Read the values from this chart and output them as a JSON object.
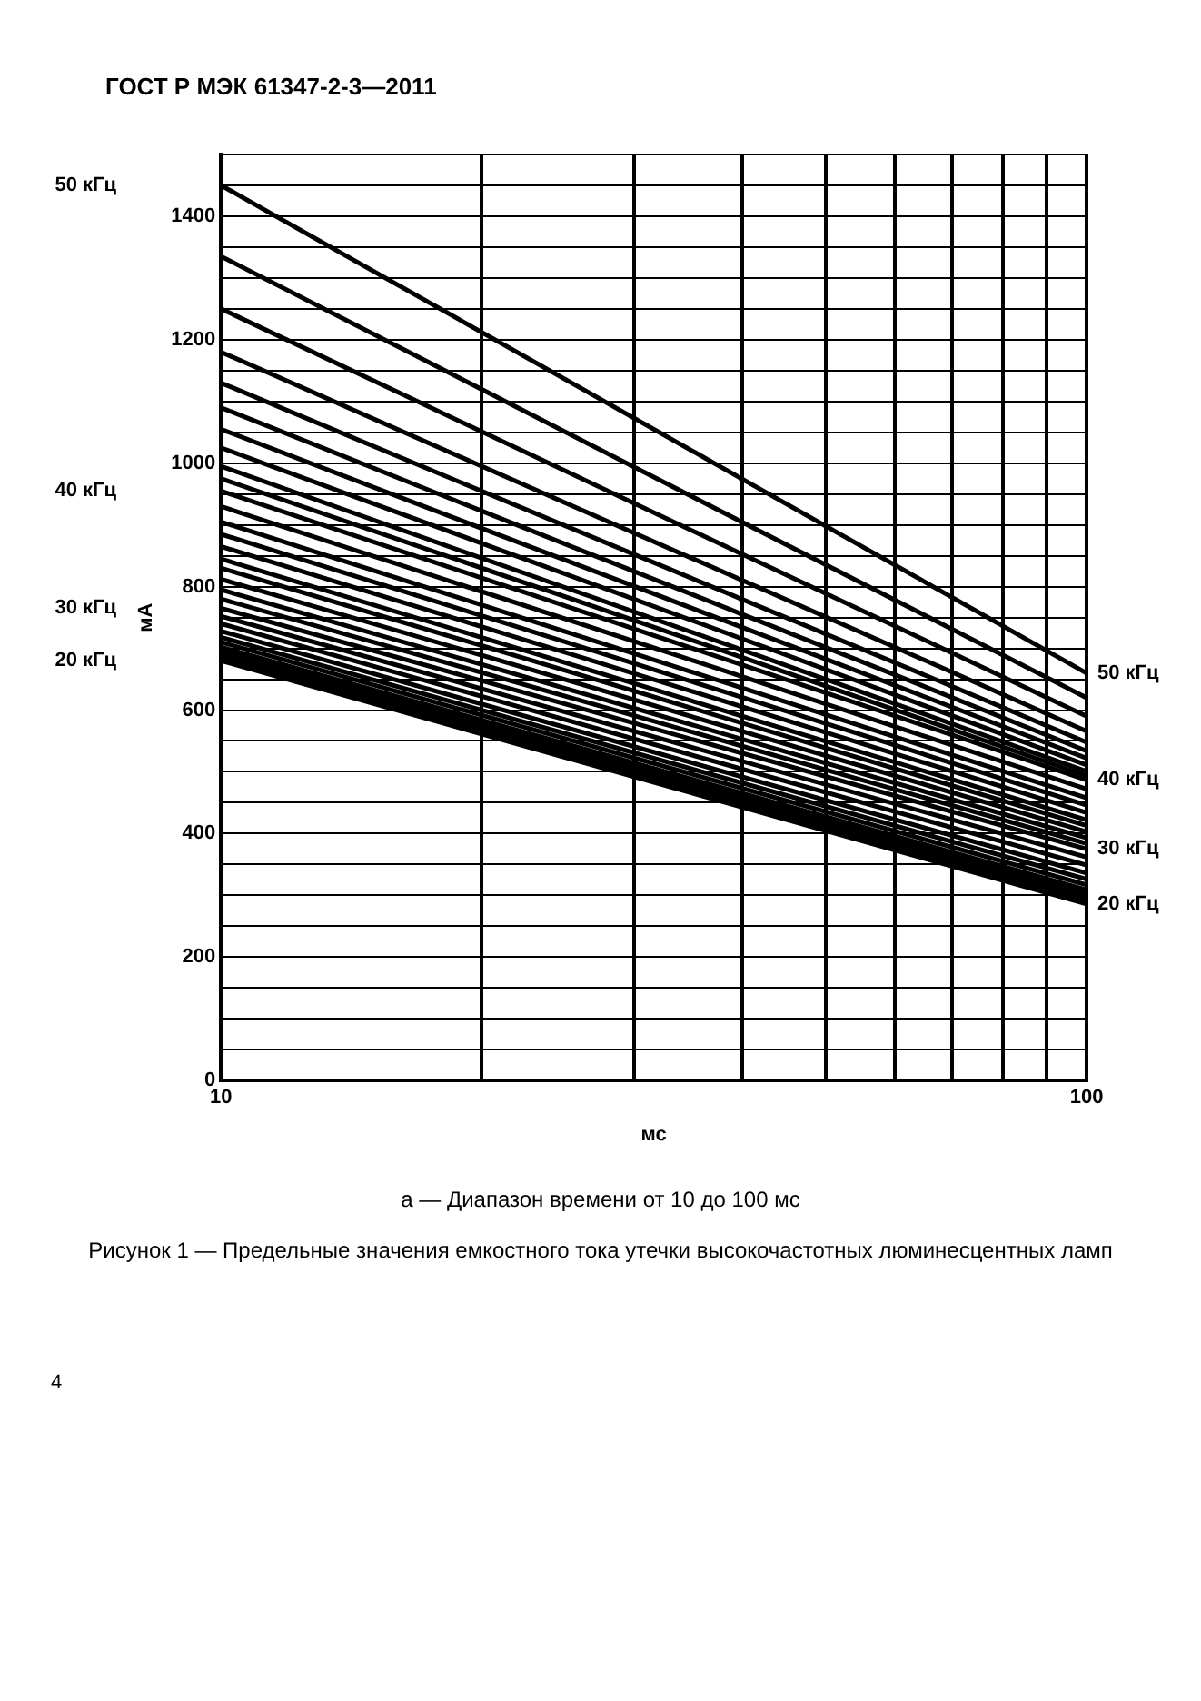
{
  "chart_data": {
    "type": "line",
    "title": "Рисунок 1 — Предельные значения емкостного тока утечки высокочастотных люминесцентных ламп",
    "subtitle": "а — Диапазон времени от 10 до 100 мс",
    "annotations": [
      "ГОСТ Р МЭК 61347-2-3—2011",
      "4"
    ],
    "xlabel": "мс",
    "ylabel": "мА",
    "log": "x",
    "grid": true,
    "legend": false,
    "marker": "none",
    "line_style": "solid",
    "xlim": [
      10,
      100
    ],
    "xticks": [
      10,
      {
        "value": 20,
        "label": null
      },
      {
        "value": 30,
        "label": null
      },
      {
        "value": 40,
        "label": null
      },
      {
        "value": 50,
        "label": null
      },
      {
        "value": 60,
        "label": null
      },
      {
        "value": 70,
        "label": null
      },
      {
        "value": 80,
        "label": null
      },
      {
        "value": 90,
        "label": null
      },
      100
    ],
    "ylim": [
      0,
      1500
    ],
    "yticks": [
      0,
      {
        "value": 50,
        "label": null
      },
      {
        "value": 100,
        "label": null
      },
      {
        "value": 150,
        "label": null
      },
      200,
      {
        "value": 250,
        "label": null
      },
      {
        "value": 300,
        "label": null
      },
      {
        "value": 350,
        "label": null
      },
      400,
      {
        "value": 450,
        "label": null
      },
      {
        "value": 500,
        "label": null
      },
      {
        "value": 550,
        "label": null
      },
      600,
      {
        "value": 650,
        "label": null
      },
      {
        "value": 700,
        "label": null
      },
      {
        "value": 750,
        "label": null
      },
      800,
      {
        "value": 850,
        "label": null
      },
      {
        "value": 900,
        "label": null
      },
      {
        "value": 950,
        "label": null
      },
      1000,
      {
        "value": 1050,
        "label": null
      },
      {
        "value": 1100,
        "label": null
      },
      {
        "value": 1150,
        "label": null
      },
      1200,
      {
        "value": 1250,
        "label": null
      },
      {
        "value": 1300,
        "label": null
      },
      {
        "value": 1350,
        "label": null
      },
      1400,
      {
        "value": 1450,
        "label": null
      },
      {
        "value": 1500,
        "label": null
      }
    ],
    "x": [
      10,
      100
    ],
    "series": [
      {
        "name": "50 кГц",
        "color": "#000000",
        "values": [
          1450,
          660
        ]
      },
      {
        "color": "#000000",
        "values": [
          1335,
          620
        ]
      },
      {
        "color": "#000000",
        "values": [
          1250,
          590
        ]
      },
      {
        "color": "#000000",
        "values": [
          1180,
          566
        ]
      },
      {
        "color": "#000000",
        "values": [
          1130,
          548
        ]
      },
      {
        "color": "#000000",
        "values": [
          1090,
          534
        ]
      },
      {
        "color": "#000000",
        "values": [
          1055,
          522
        ]
      },
      {
        "color": "#000000",
        "values": [
          1025,
          511
        ]
      },
      {
        "color": "#000000",
        "values": [
          995,
          501
        ]
      },
      {
        "color": "#000000",
        "values": [
          975,
          494
        ]
      },
      {
        "name": "40 кГц",
        "color": "#000000",
        "values": [
          955,
          487
        ]
      },
      {
        "color": "#000000",
        "values": [
          930,
          472
        ]
      },
      {
        "color": "#000000",
        "values": [
          905,
          458
        ]
      },
      {
        "color": "#000000",
        "values": [
          885,
          446
        ]
      },
      {
        "color": "#000000",
        "values": [
          865,
          434
        ]
      },
      {
        "color": "#000000",
        "values": [
          845,
          422
        ]
      },
      {
        "color": "#000000",
        "values": [
          830,
          413
        ]
      },
      {
        "color": "#000000",
        "values": [
          812,
          403
        ]
      },
      {
        "color": "#000000",
        "values": [
          795,
          393
        ]
      },
      {
        "color": "#000000",
        "values": [
          780,
          384
        ]
      },
      {
        "name": "30 кГц",
        "color": "#000000",
        "values": [
          765,
          375
        ]
      },
      {
        "color": "#000000",
        "values": [
          752,
          362
        ]
      },
      {
        "color": "#000000",
        "values": [
          740,
          349
        ]
      },
      {
        "color": "#000000",
        "values": [
          728,
          336
        ]
      },
      {
        "color": "#000000",
        "values": [
          718,
          326
        ]
      },
      {
        "color": "#000000",
        "values": [
          710,
          317
        ]
      },
      {
        "color": "#000000",
        "values": [
          702,
          309
        ]
      },
      {
        "color": "#000000",
        "values": [
          696,
          303
        ]
      },
      {
        "color": "#000000",
        "values": [
          690,
          297
        ]
      },
      {
        "color": "#000000",
        "values": [
          685,
          291
        ]
      },
      {
        "name": "20 кГц",
        "color": "#000000",
        "values": [
          680,
          286
        ]
      }
    ]
  }
}
